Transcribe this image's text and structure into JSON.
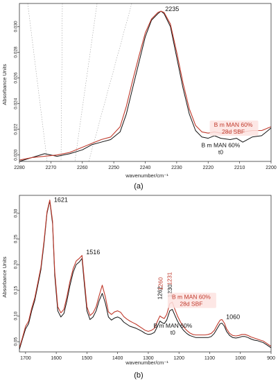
{
  "colors": {
    "red": "#c0392b",
    "black": "#111111",
    "axis": "#333333",
    "grid": "#8a8a8a"
  },
  "chart_data": [
    {
      "type": "line",
      "panel_label": "(a)",
      "xlabel": "wavenumber/cm⁻¹",
      "ylabel": "Absorbance Units",
      "xlim": [
        2280,
        2200
      ],
      "ylim": [
        0.0195,
        0.0318
      ],
      "xticks": [
        2280,
        2270,
        2260,
        2250,
        2240,
        2230,
        2220,
        2210,
        2200
      ],
      "yticks": [
        0.02,
        0.022,
        0.024,
        0.026,
        0.028,
        0.03
      ],
      "ytick_labels": [
        "0.020",
        "0.022",
        "0.024",
        "0.026",
        "0.028",
        "0.030"
      ],
      "grid": "dashed diagonal lines across left half",
      "peak_labels": [
        {
          "text": "2235",
          "x": 2235,
          "y": 0.0312,
          "color": "black"
        }
      ],
      "legend_labels": [
        {
          "lines": [
            "B m MAN 60%",
            "28d SBF"
          ],
          "color": "red",
          "x": 2212,
          "y": 0.0222
        },
        {
          "lines": [
            "B m MAN 60%",
            "t0"
          ],
          "color": "black",
          "x": 2216,
          "y": 0.0206
        }
      ],
      "series": [
        {
          "name": "B m MAN 60% t0",
          "color": "black",
          "x": [
            2280,
            2276,
            2272,
            2268,
            2264,
            2260,
            2257,
            2254,
            2251,
            2248,
            2246,
            2244,
            2242,
            2240,
            2238,
            2236,
            2235,
            2234,
            2232,
            2230,
            2228,
            2226,
            2224,
            2222,
            2220,
            2218,
            2216,
            2213,
            2211,
            2209,
            2206,
            2203,
            2201,
            2200
          ],
          "y": [
            0.0195,
            0.0198,
            0.0201,
            0.0199,
            0.0201,
            0.0204,
            0.0208,
            0.021,
            0.0212,
            0.0218,
            0.0232,
            0.0252,
            0.0272,
            0.0292,
            0.0305,
            0.031,
            0.0312,
            0.031,
            0.03,
            0.0276,
            0.0252,
            0.0232,
            0.0219,
            0.0214,
            0.0213,
            0.0215,
            0.0213,
            0.0212,
            0.0213,
            0.021,
            0.0214,
            0.0215,
            0.0219,
            0.0221
          ]
        },
        {
          "name": "B m MAN 60% 28d SBF",
          "color": "red",
          "x": [
            2280,
            2276,
            2272,
            2268,
            2264,
            2260,
            2257,
            2254,
            2251,
            2248,
            2246,
            2244,
            2242,
            2240,
            2238,
            2236,
            2235,
            2234,
            2232,
            2230,
            2228,
            2226,
            2224,
            2222,
            2220,
            2218,
            2216,
            2213,
            2211,
            2209,
            2206,
            2203,
            2201,
            2200
          ],
          "y": [
            0.0196,
            0.0198,
            0.0199,
            0.02,
            0.0202,
            0.0206,
            0.0209,
            0.0212,
            0.0214,
            0.0222,
            0.0238,
            0.0258,
            0.0277,
            0.0295,
            0.0306,
            0.0311,
            0.0312,
            0.0311,
            0.0302,
            0.028,
            0.0256,
            0.0236,
            0.0223,
            0.0218,
            0.0217,
            0.0218,
            0.0217,
            0.0218,
            0.0219,
            0.0218,
            0.0219,
            0.0219,
            0.0221,
            0.0222
          ]
        }
      ]
    },
    {
      "type": "line",
      "panel_label": "(b)",
      "xlabel": "wavenumber/cm⁻¹",
      "ylabel": "Absorbance Units",
      "xlim": [
        1720,
        900
      ],
      "ylim": [
        0.03,
        0.335
      ],
      "xticks": [
        1700,
        1600,
        1500,
        1400,
        1300,
        1200,
        1100,
        1000,
        900
      ],
      "yticks": [
        0.05,
        0.1,
        0.15,
        0.2,
        0.25,
        0.3
      ],
      "ytick_labels": [
        "0.05",
        "0.10",
        "0.15",
        "0.20",
        "0.25",
        "0.30"
      ],
      "grid": "none",
      "peak_labels": [
        {
          "text": "1621",
          "x": 1621,
          "y": 0.322,
          "color": "black"
        },
        {
          "text": "1516",
          "x": 1516,
          "y": 0.22,
          "color": "black"
        },
        {
          "text": "1262",
          "x": 1262,
          "y": 0.132,
          "color": "black",
          "rotated": true
        },
        {
          "text": "1260",
          "x": 1260,
          "y": 0.15,
          "color": "red",
          "rotated": true
        },
        {
          "text": "1230",
          "x": 1230,
          "y": 0.136,
          "color": "black",
          "rotated": true
        },
        {
          "text": "1231",
          "x": 1231,
          "y": 0.16,
          "color": "red",
          "rotated": true
        },
        {
          "text": "1060",
          "x": 1060,
          "y": 0.094,
          "color": "black"
        }
      ],
      "legend_labels": [
        {
          "lines": [
            "B m MAN 60%",
            "28d SBF"
          ],
          "color": "red",
          "x": 1160,
          "y": 0.133
        },
        {
          "lines": [
            "B m MAN 60%",
            "t0"
          ],
          "color": "black",
          "x": 1220,
          "y": 0.077
        }
      ],
      "series": [
        {
          "name": "B m MAN 60% t0",
          "color": "black",
          "x": [
            1720,
            1710,
            1700,
            1690,
            1680,
            1670,
            1660,
            1650,
            1640,
            1630,
            1621,
            1612,
            1605,
            1595,
            1585,
            1575,
            1565,
            1555,
            1545,
            1535,
            1525,
            1516,
            1508,
            1500,
            1490,
            1480,
            1470,
            1460,
            1450,
            1440,
            1430,
            1420,
            1410,
            1400,
            1390,
            1380,
            1370,
            1360,
            1350,
            1340,
            1330,
            1320,
            1310,
            1300,
            1290,
            1280,
            1270,
            1262,
            1255,
            1248,
            1240,
            1230,
            1222,
            1214,
            1205,
            1195,
            1185,
            1175,
            1165,
            1155,
            1145,
            1135,
            1125,
            1115,
            1105,
            1095,
            1085,
            1075,
            1066,
            1060,
            1052,
            1045,
            1035,
            1025,
            1015,
            1005,
            995,
            985,
            975,
            965,
            955,
            945,
            935,
            925,
            915,
            905,
            900
          ],
          "y": [
            0.035,
            0.055,
            0.075,
            0.085,
            0.11,
            0.13,
            0.16,
            0.19,
            0.24,
            0.3,
            0.324,
            0.28,
            0.18,
            0.11,
            0.098,
            0.105,
            0.13,
            0.16,
            0.185,
            0.2,
            0.205,
            0.212,
            0.16,
            0.11,
            0.093,
            0.098,
            0.11,
            0.13,
            0.144,
            0.125,
            0.098,
            0.092,
            0.096,
            0.098,
            0.095,
            0.088,
            0.084,
            0.08,
            0.078,
            0.076,
            0.073,
            0.07,
            0.066,
            0.064,
            0.065,
            0.068,
            0.08,
            0.09,
            0.087,
            0.085,
            0.092,
            0.11,
            0.113,
            0.102,
            0.09,
            0.08,
            0.072,
            0.066,
            0.062,
            0.06,
            0.058,
            0.058,
            0.058,
            0.058,
            0.058,
            0.06,
            0.066,
            0.076,
            0.085,
            0.086,
            0.08,
            0.07,
            0.062,
            0.058,
            0.057,
            0.058,
            0.06,
            0.06,
            0.058,
            0.055,
            0.053,
            0.052,
            0.05,
            0.048,
            0.044,
            0.04,
            0.038
          ]
        },
        {
          "name": "B m MAN 60% 28d SBF",
          "color": "red",
          "x": [
            1720,
            1710,
            1700,
            1690,
            1680,
            1670,
            1660,
            1650,
            1640,
            1630,
            1621,
            1612,
            1605,
            1595,
            1585,
            1575,
            1565,
            1555,
            1545,
            1535,
            1525,
            1516,
            1508,
            1500,
            1490,
            1480,
            1470,
            1460,
            1450,
            1440,
            1430,
            1420,
            1410,
            1400,
            1390,
            1380,
            1370,
            1360,
            1350,
            1340,
            1330,
            1320,
            1310,
            1300,
            1290,
            1280,
            1270,
            1262,
            1255,
            1248,
            1240,
            1230,
            1222,
            1214,
            1205,
            1195,
            1185,
            1175,
            1165,
            1155,
            1145,
            1135,
            1125,
            1115,
            1105,
            1095,
            1085,
            1075,
            1066,
            1060,
            1052,
            1045,
            1035,
            1025,
            1015,
            1005,
            995,
            985,
            975,
            965,
            955,
            945,
            935,
            925,
            915,
            905,
            900
          ],
          "y": [
            0.038,
            0.058,
            0.08,
            0.09,
            0.115,
            0.135,
            0.165,
            0.195,
            0.245,
            0.303,
            0.326,
            0.285,
            0.188,
            0.118,
            0.106,
            0.113,
            0.138,
            0.168,
            0.192,
            0.207,
            0.212,
            0.218,
            0.168,
            0.118,
            0.101,
            0.106,
            0.118,
            0.14,
            0.16,
            0.137,
            0.108,
            0.103,
            0.108,
            0.11,
            0.107,
            0.099,
            0.094,
            0.09,
            0.087,
            0.084,
            0.08,
            0.076,
            0.072,
            0.07,
            0.072,
            0.076,
            0.09,
            0.1,
            0.097,
            0.095,
            0.103,
            0.124,
            0.127,
            0.114,
            0.1,
            0.088,
            0.079,
            0.072,
            0.067,
            0.064,
            0.063,
            0.063,
            0.063,
            0.063,
            0.064,
            0.066,
            0.072,
            0.083,
            0.092,
            0.093,
            0.086,
            0.075,
            0.066,
            0.062,
            0.061,
            0.062,
            0.064,
            0.064,
            0.062,
            0.059,
            0.057,
            0.055,
            0.053,
            0.051,
            0.047,
            0.043,
            0.041
          ]
        }
      ]
    }
  ]
}
